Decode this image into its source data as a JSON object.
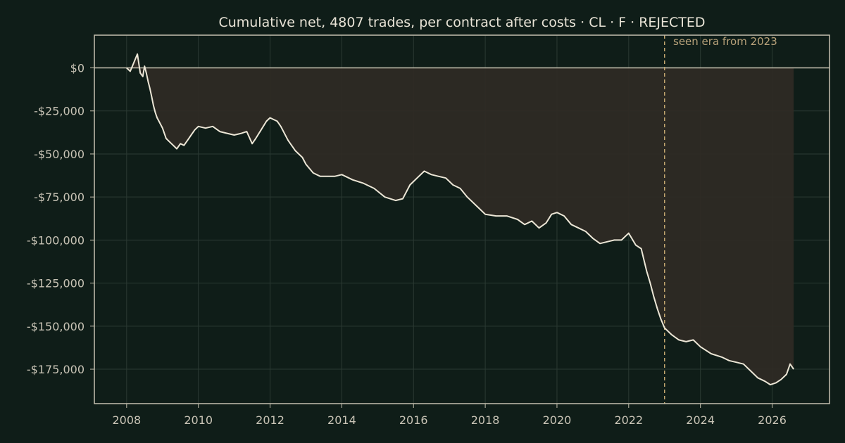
{
  "chart_data": {
    "type": "area",
    "title": "Cumulative net, 4807 trades, per contract after costs  ·  CL · F · REJECTED",
    "xlabel": "",
    "ylabel": "",
    "xlim": [
      2007.1,
      2027.6
    ],
    "ylim": [
      -195000,
      19000
    ],
    "grid": true,
    "x_ticks": [
      2008,
      2010,
      2012,
      2014,
      2016,
      2018,
      2020,
      2022,
      2024,
      2026
    ],
    "x_tick_labels": [
      "2008",
      "2010",
      "2012",
      "2014",
      "2016",
      "2018",
      "2020",
      "2022",
      "2024",
      "2026"
    ],
    "y_ticks": [
      0,
      -25000,
      -50000,
      -75000,
      -100000,
      -125000,
      -150000,
      -175000
    ],
    "y_tick_labels": [
      "$0",
      "-$25,000",
      "-$50,000",
      "-$75,000",
      "-$100,000",
      "-$125,000",
      "-$150,000",
      "-$175,000"
    ],
    "annotation": {
      "label": "seen era from 2023",
      "x": 2023.0
    },
    "series": [
      {
        "x": [
          2008.0,
          2008.1,
          2008.2,
          2008.3,
          2008.38,
          2008.45,
          2008.5,
          2008.55,
          2008.6,
          2008.65,
          2008.7,
          2008.75,
          2008.8,
          2008.85,
          2008.9,
          2009.0,
          2009.1,
          2009.2,
          2009.3,
          2009.4,
          2009.5,
          2009.6,
          2009.7,
          2009.8,
          2009.9,
          2010.0,
          2010.2,
          2010.4,
          2010.6,
          2010.8,
          2011.0,
          2011.2,
          2011.35,
          2011.5,
          2011.6,
          2011.75,
          2011.9,
          2012.0,
          2012.1,
          2012.2,
          2012.3,
          2012.5,
          2012.7,
          2012.9,
          2013.0,
          2013.2,
          2013.4,
          2013.6,
          2013.8,
          2014.0,
          2014.3,
          2014.6,
          2014.9,
          2015.2,
          2015.5,
          2015.7,
          2015.9,
          2016.1,
          2016.3,
          2016.5,
          2016.7,
          2016.9,
          2017.1,
          2017.3,
          2017.5,
          2017.8,
          2018.0,
          2018.3,
          2018.6,
          2018.9,
          2019.1,
          2019.3,
          2019.5,
          2019.7,
          2019.85,
          2020.0,
          2020.2,
          2020.4,
          2020.6,
          2020.8,
          2021.0,
          2021.2,
          2021.4,
          2021.6,
          2021.8,
          2022.0,
          2022.2,
          2022.35,
          2022.5,
          2022.6,
          2022.7,
          2022.8,
          2022.9,
          2023.0,
          2023.2,
          2023.4,
          2023.6,
          2023.8,
          2024.0,
          2024.3,
          2024.6,
          2024.8,
          2025.0,
          2025.2,
          2025.4,
          2025.6,
          2025.8,
          2025.95,
          2026.1,
          2026.25,
          2026.4,
          2026.5,
          2026.6
        ],
        "values": [
          0,
          -2000,
          3000,
          8000,
          -3000,
          -5000,
          1000,
          -3000,
          -8000,
          -12000,
          -17000,
          -22000,
          -26000,
          -29000,
          -31000,
          -35000,
          -41000,
          -43000,
          -45000,
          -47000,
          -44000,
          -45000,
          -42000,
          -39000,
          -36000,
          -34000,
          -35000,
          -34000,
          -37000,
          -38000,
          -39000,
          -38000,
          -37000,
          -44000,
          -41000,
          -36000,
          -31000,
          -29000,
          -30000,
          -31000,
          -34000,
          -42000,
          -48000,
          -52000,
          -56000,
          -61000,
          -63000,
          -63000,
          -63000,
          -62000,
          -65000,
          -67000,
          -70000,
          -75000,
          -77000,
          -76000,
          -68000,
          -64000,
          -60000,
          -62000,
          -63000,
          -64000,
          -68000,
          -70000,
          -75000,
          -81000,
          -85000,
          -86000,
          -86000,
          -88000,
          -91000,
          -89000,
          -93000,
          -90000,
          -85000,
          -84000,
          -86000,
          -91000,
          -93000,
          -95000,
          -99000,
          -102000,
          -101000,
          -100000,
          -100000,
          -96000,
          -103000,
          -105000,
          -118000,
          -125000,
          -133000,
          -140000,
          -146000,
          -151000,
          -155000,
          -158000,
          -159000,
          -158000,
          -162000,
          -166000,
          -168000,
          -170000,
          -171000,
          -172000,
          -176000,
          -180000,
          -182000,
          -184000,
          -183000,
          -181000,
          -178000,
          -172000,
          -175000
        ]
      }
    ]
  },
  "colors": {
    "background": "#0f1d18",
    "line": "#ece6d6",
    "fill": "#2e2a24",
    "axis": "#c5c0af",
    "grid": "#2b3a33",
    "annotation": "#c2a66f",
    "text": "#e8e3d6"
  }
}
